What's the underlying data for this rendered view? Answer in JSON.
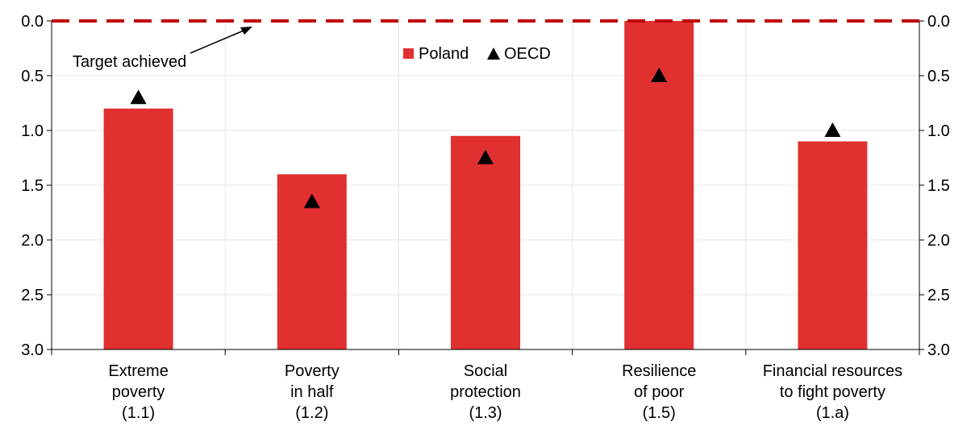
{
  "chart_data": {
    "type": "bar",
    "categories": [
      [
        "Extreme",
        "poverty",
        "(1.1)"
      ],
      [
        "Poverty",
        "in half",
        "(1.2)"
      ],
      [
        "Social",
        "protection",
        "(1.3)"
      ],
      [
        "Resilience",
        "of poor",
        "(1.5)"
      ],
      [
        "Financial resources",
        "to fight poverty",
        "(1.a)"
      ]
    ],
    "series": [
      {
        "name": "Poland",
        "kind": "bar",
        "color": "#e03030",
        "values": [
          0.8,
          1.4,
          1.05,
          0.0,
          1.1
        ]
      },
      {
        "name": "OECD",
        "kind": "triangle-marker",
        "color": "#000000",
        "values": [
          0.7,
          1.65,
          1.25,
          0.5,
          1.0
        ]
      }
    ],
    "target_line": {
      "value": 0.0,
      "color": "#c00000",
      "style": "dashed"
    },
    "annotation": "Target achieved",
    "yaxis": {
      "ylim": [
        0,
        3
      ],
      "inverted": true,
      "ticks": [
        "0.0",
        "0.5",
        "1.0",
        "1.5",
        "2.0",
        "2.5",
        "3.0"
      ],
      "tick_values": [
        0,
        0.5,
        1.0,
        1.5,
        2.0,
        2.5,
        3.0
      ],
      "dual": true
    },
    "grid": true,
    "legend": "top-center",
    "title": "",
    "xlabel": "",
    "ylabel": ""
  }
}
